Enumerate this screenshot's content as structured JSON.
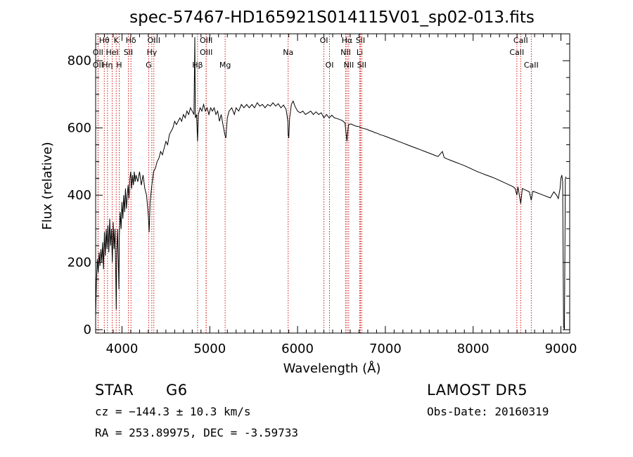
{
  "chart_data": {
    "type": "line",
    "title": "spec-57467-HD165921S014115V01_sp02-013.fits",
    "xlabel": "Wavelength (Å)",
    "ylabel": "Flux (relative)",
    "xlim": [
      3700,
      9100
    ],
    "ylim": [
      -10,
      880
    ],
    "x_ticks": [
      4000,
      5000,
      6000,
      7000,
      8000,
      9000
    ],
    "y_ticks": [
      0,
      200,
      400,
      600,
      800
    ],
    "grid": false,
    "line_color": "#000000",
    "marker_color": "#cc0000",
    "series": [
      {
        "points": [
          [
            3700,
            40
          ],
          [
            3710,
            150
          ],
          [
            3720,
            210
          ],
          [
            3730,
            170
          ],
          [
            3740,
            230
          ],
          [
            3750,
            190
          ],
          [
            3760,
            240
          ],
          [
            3770,
            200
          ],
          [
            3780,
            260
          ],
          [
            3790,
            180
          ],
          [
            3800,
            290
          ],
          [
            3810,
            220
          ],
          [
            3820,
            300
          ],
          [
            3830,
            240
          ],
          [
            3840,
            310
          ],
          [
            3850,
            230
          ],
          [
            3860,
            330
          ],
          [
            3870,
            250
          ],
          [
            3880,
            300
          ],
          [
            3890,
            200
          ],
          [
            3900,
            320
          ],
          [
            3910,
            240
          ],
          [
            3920,
            300
          ],
          [
            3930,
            150
          ],
          [
            3935,
            60
          ],
          [
            3940,
            220
          ],
          [
            3950,
            300
          ],
          [
            3960,
            180
          ],
          [
            3965,
            120
          ],
          [
            3970,
            280
          ],
          [
            3980,
            350
          ],
          [
            3990,
            300
          ],
          [
            4000,
            380
          ],
          [
            4010,
            330
          ],
          [
            4020,
            400
          ],
          [
            4030,
            350
          ],
          [
            4040,
            420
          ],
          [
            4050,
            360
          ],
          [
            4060,
            400
          ],
          [
            4070,
            430
          ],
          [
            4080,
            390
          ],
          [
            4090,
            450
          ],
          [
            4100,
            470
          ],
          [
            4110,
            420
          ],
          [
            4120,
            460
          ],
          [
            4130,
            430
          ],
          [
            4140,
            470
          ],
          [
            4150,
            440
          ],
          [
            4160,
            460
          ],
          [
            4180,
            440
          ],
          [
            4200,
            470
          ],
          [
            4220,
            430
          ],
          [
            4240,
            460
          ],
          [
            4260,
            420
          ],
          [
            4280,
            400
          ],
          [
            4300,
            340
          ],
          [
            4310,
            290
          ],
          [
            4320,
            380
          ],
          [
            4340,
            430
          ],
          [
            4360,
            470
          ],
          [
            4380,
            480
          ],
          [
            4400,
            500
          ],
          [
            4420,
            510
          ],
          [
            4440,
            530
          ],
          [
            4460,
            520
          ],
          [
            4480,
            540
          ],
          [
            4500,
            560
          ],
          [
            4520,
            550
          ],
          [
            4540,
            580
          ],
          [
            4560,
            590
          ],
          [
            4580,
            600
          ],
          [
            4600,
            620
          ],
          [
            4620,
            610
          ],
          [
            4640,
            620
          ],
          [
            4660,
            630
          ],
          [
            4680,
            620
          ],
          [
            4700,
            640
          ],
          [
            4720,
            630
          ],
          [
            4740,
            650
          ],
          [
            4760,
            640
          ],
          [
            4780,
            660
          ],
          [
            4800,
            650
          ],
          [
            4820,
            640
          ],
          [
            4830,
            870
          ],
          [
            4835,
            630
          ],
          [
            4850,
            640
          ],
          [
            4861,
            560
          ],
          [
            4870,
            640
          ],
          [
            4890,
            660
          ],
          [
            4910,
            650
          ],
          [
            4930,
            670
          ],
          [
            4950,
            650
          ],
          [
            4970,
            660
          ],
          [
            4990,
            640
          ],
          [
            5010,
            660
          ],
          [
            5030,
            650
          ],
          [
            5050,
            660
          ],
          [
            5070,
            640
          ],
          [
            5090,
            650
          ],
          [
            5110,
            620
          ],
          [
            5130,
            640
          ],
          [
            5150,
            610
          ],
          [
            5172,
            580
          ],
          [
            5183,
            570
          ],
          [
            5200,
            630
          ],
          [
            5220,
            650
          ],
          [
            5250,
            660
          ],
          [
            5280,
            640
          ],
          [
            5300,
            660
          ],
          [
            5330,
            650
          ],
          [
            5360,
            670
          ],
          [
            5390,
            660
          ],
          [
            5420,
            670
          ],
          [
            5450,
            660
          ],
          [
            5480,
            670
          ],
          [
            5510,
            660
          ],
          [
            5540,
            675
          ],
          [
            5570,
            665
          ],
          [
            5600,
            670
          ],
          [
            5630,
            660
          ],
          [
            5660,
            670
          ],
          [
            5690,
            665
          ],
          [
            5720,
            675
          ],
          [
            5750,
            665
          ],
          [
            5780,
            672
          ],
          [
            5810,
            660
          ],
          [
            5840,
            668
          ],
          [
            5870,
            655
          ],
          [
            5890,
            620
          ],
          [
            5893,
            580
          ],
          [
            5900,
            570
          ],
          [
            5910,
            630
          ],
          [
            5930,
            670
          ],
          [
            5950,
            680
          ],
          [
            5970,
            665
          ],
          [
            6000,
            650
          ],
          [
            6030,
            645
          ],
          [
            6060,
            650
          ],
          [
            6090,
            640
          ],
          [
            6120,
            645
          ],
          [
            6150,
            650
          ],
          [
            6180,
            640
          ],
          [
            6210,
            648
          ],
          [
            6240,
            640
          ],
          [
            6270,
            645
          ],
          [
            6300,
            630
          ],
          [
            6330,
            640
          ],
          [
            6360,
            630
          ],
          [
            6390,
            638
          ],
          [
            6420,
            630
          ],
          [
            6450,
            628
          ],
          [
            6480,
            625
          ],
          [
            6510,
            622
          ],
          [
            6540,
            615
          ],
          [
            6563,
            560
          ],
          [
            6580,
            610
          ],
          [
            6610,
            612
          ],
          [
            6640,
            608
          ],
          [
            6670,
            605
          ],
          [
            6700,
            604
          ],
          [
            6730,
            600
          ],
          [
            6760,
            598
          ],
          [
            6790,
            596
          ],
          [
            6820,
            592
          ],
          [
            6850,
            590
          ],
          [
            6880,
            586
          ],
          [
            6910,
            584
          ],
          [
            6940,
            580
          ],
          [
            6970,
            578
          ],
          [
            7000,
            575
          ],
          [
            7050,
            570
          ],
          [
            7100,
            565
          ],
          [
            7150,
            560
          ],
          [
            7200,
            555
          ],
          [
            7250,
            550
          ],
          [
            7300,
            545
          ],
          [
            7350,
            540
          ],
          [
            7400,
            535
          ],
          [
            7450,
            530
          ],
          [
            7500,
            525
          ],
          [
            7550,
            520
          ],
          [
            7600,
            515
          ],
          [
            7650,
            530
          ],
          [
            7670,
            512
          ],
          [
            7700,
            508
          ],
          [
            7750,
            503
          ],
          [
            7800,
            498
          ],
          [
            7850,
            493
          ],
          [
            7900,
            488
          ],
          [
            7950,
            482
          ],
          [
            8000,
            476
          ],
          [
            8050,
            470
          ],
          [
            8100,
            465
          ],
          [
            8150,
            460
          ],
          [
            8200,
            455
          ],
          [
            8250,
            450
          ],
          [
            8300,
            444
          ],
          [
            8350,
            438
          ],
          [
            8400,
            432
          ],
          [
            8450,
            426
          ],
          [
            8480,
            420
          ],
          [
            8498,
            400
          ],
          [
            8510,
            425
          ],
          [
            8542,
            375
          ],
          [
            8560,
            420
          ],
          [
            8600,
            415
          ],
          [
            8640,
            410
          ],
          [
            8662,
            385
          ],
          [
            8680,
            412
          ],
          [
            8720,
            408
          ],
          [
            8760,
            404
          ],
          [
            8800,
            400
          ],
          [
            8840,
            396
          ],
          [
            8880,
            392
          ],
          [
            8920,
            410
          ],
          [
            8950,
            400
          ],
          [
            8970,
            390
          ],
          [
            8990,
            420
          ],
          [
            9000,
            450
          ],
          [
            9010,
            460
          ],
          [
            9020,
            440
          ],
          [
            9030,
            10
          ],
          [
            9040,
            0
          ],
          [
            9050,
            450
          ],
          [
            9060,
            455
          ]
        ]
      }
    ],
    "lines": [
      {
        "label": "Hθ",
        "x": 3798,
        "row": 0
      },
      {
        "label": "K",
        "x": 3934,
        "row": 0
      },
      {
        "label": "Hδ",
        "x": 4102,
        "row": 0
      },
      {
        "label": "OIII",
        "x": 4363,
        "row": 0
      },
      {
        "label": "OIII",
        "x": 4959,
        "row": 0
      },
      {
        "label": "OI",
        "x": 6300,
        "row": 0
      },
      {
        "label": "Hα",
        "x": 6563,
        "row": 0
      },
      {
        "label": "SII",
        "x": 6716,
        "row": 0
      },
      {
        "label": "CaII",
        "x": 8542,
        "row": 0
      },
      {
        "label": "OII",
        "x": 3727,
        "row": 1
      },
      {
        "label": "HeI",
        "x": 3889,
        "row": 1
      },
      {
        "label": "SII",
        "x": 4072,
        "row": 1
      },
      {
        "label": "Hγ",
        "x": 4340,
        "row": 1
      },
      {
        "label": "OIII",
        "x": 4959,
        "row": 1
      },
      {
        "label": "Na",
        "x": 5893,
        "row": 1
      },
      {
        "label": "NII",
        "x": 6548,
        "row": 1
      },
      {
        "label": "Li",
        "x": 6708,
        "row": 1
      },
      {
        "label": "CaII",
        "x": 8498,
        "row": 1
      },
      {
        "label": "OII",
        "x": 3727,
        "row": 2
      },
      {
        "label": "Hη",
        "x": 3835,
        "row": 2
      },
      {
        "label": "H",
        "x": 3968,
        "row": 2
      },
      {
        "label": "G",
        "x": 4304,
        "row": 2
      },
      {
        "label": "Hβ",
        "x": 4861,
        "row": 2
      },
      {
        "label": "Mg",
        "x": 5175,
        "row": 2
      },
      {
        "label": "OI",
        "x": 6364,
        "row": 2
      },
      {
        "label": "NII",
        "x": 6583,
        "row": 2
      },
      {
        "label": "SII",
        "x": 6731,
        "row": 2
      },
      {
        "label": "CaII",
        "x": 8662,
        "row": 2
      }
    ]
  },
  "info": {
    "object_type": "STAR",
    "subclass": "G6",
    "survey": "LAMOST DR5",
    "cz": "cz = −144.3 ± 10.3 km/s",
    "obs_date": "Obs-Date: 20160319",
    "coords": "RA = 253.89975, DEC =  -3.59733"
  }
}
